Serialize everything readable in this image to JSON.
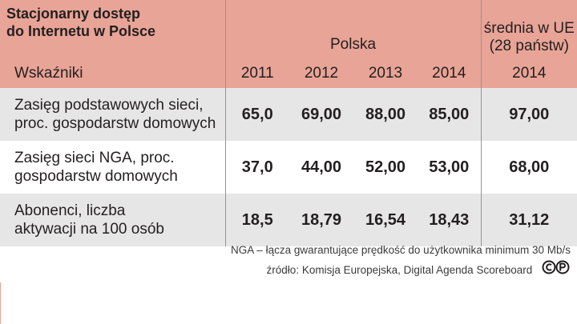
{
  "chart_data": {
    "type": "table",
    "title_lines": [
      "Stacjonarny dostęp",
      "do Internetu w Polsce"
    ],
    "group_headers": {
      "poland": "Polska",
      "eu_lines": [
        "średnia w UE",
        "(28 państw)"
      ]
    },
    "indicator_header": "Wskaźniki",
    "years": [
      "2011",
      "2012",
      "2013",
      "2014"
    ],
    "eu_year": "2014",
    "rows": [
      {
        "label_lines": [
          "Zasięg podstawowych sieci,",
          "proc. gospodarstw domowych"
        ],
        "values": [
          "65,0",
          "69,00",
          "88,00",
          "85,00"
        ],
        "eu": "97,00"
      },
      {
        "label_lines": [
          "Zasięg sieci NGA, proc.",
          "gospodarstw domowych"
        ],
        "values": [
          "37,0",
          "44,00",
          "52,00",
          "53,00"
        ],
        "eu": "68,00"
      },
      {
        "label_lines": [
          "Abonenci, liczba",
          "aktywacji na 100 osób"
        ],
        "values": [
          "18,5",
          "18,79",
          "16,54",
          "18,43"
        ],
        "eu": "31,12"
      }
    ]
  },
  "footnotes": {
    "nga_note": "NGA – łącza gwarantujące prędkość do użytkownika minimum 30 Mb/s",
    "source": "źródło: Komisja Europejska, Digital Agenda Scoreboard"
  },
  "colors": {
    "header_bg": "#e8a496",
    "shaded_row": "#e7e6e6"
  },
  "icons": {
    "license": "copyright-cp-icon"
  }
}
